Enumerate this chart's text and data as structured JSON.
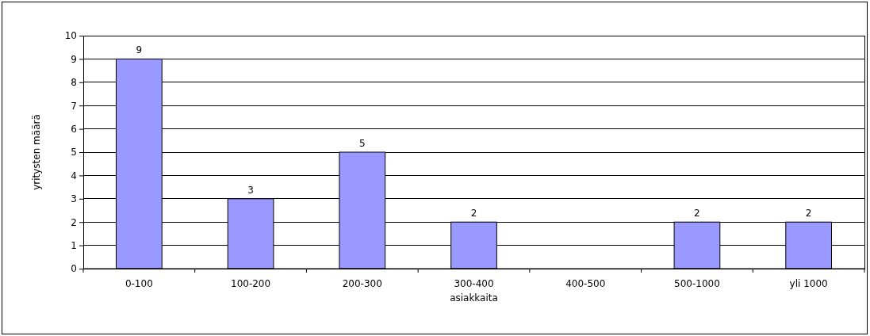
{
  "chart_data": {
    "type": "bar",
    "xlabel": "asiakkaita",
    "ylabel": "yritysten määrä",
    "categories": [
      "0-100",
      "100-200",
      "200-300",
      "300-400",
      "400-500",
      "500-1000",
      "yli 1000"
    ],
    "values": [
      9,
      3,
      5,
      2,
      0,
      2,
      2
    ],
    "value_labels": [
      "9",
      "3",
      "5",
      "2",
      null,
      "2",
      "2"
    ],
    "color": "#9999ff",
    "ylim": [
      0,
      10
    ],
    "yticks": [
      0,
      1,
      2,
      3,
      4,
      5,
      6,
      7,
      8,
      9,
      10
    ],
    "grid": "y"
  }
}
